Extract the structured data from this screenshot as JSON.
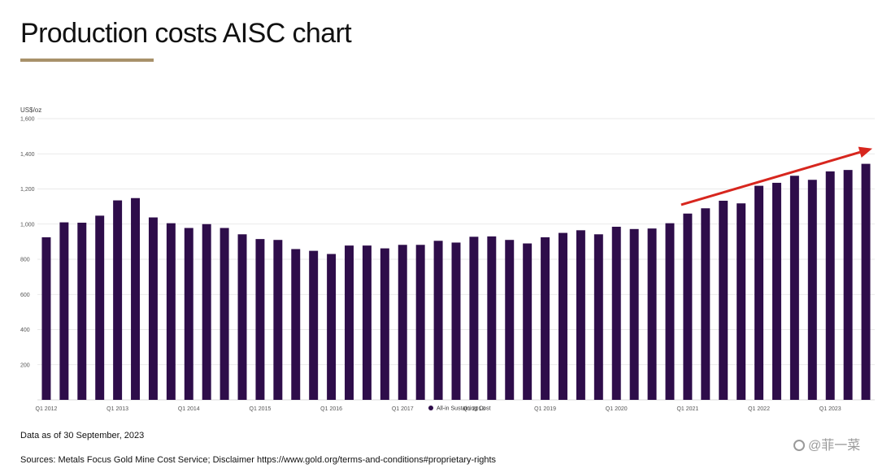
{
  "page": {
    "title": "Production costs AISC chart",
    "data_date_note": "Data as of 30 September, 2023",
    "sources_note": "Sources: Metals Focus Gold Mine Cost Service; Disclaimer https://www.gold.org/terms-and-conditions#proprietary-rights",
    "watermark": "@菲一菜",
    "watermark_icon": "zhihu-logo-icon",
    "colors": {
      "bar": "#2e0d4a",
      "accent_underline": "#a8916a",
      "arrow": "#d7261e",
      "grid": "#e2e2e2",
      "text": "#111111"
    }
  },
  "chart_data": {
    "type": "bar",
    "unit_label": "US$/oz",
    "ylim": [
      0,
      1600
    ],
    "y_ticks": [
      200,
      400,
      600,
      800,
      1000,
      1200,
      1400,
      1600
    ],
    "y_tick_labels": [
      "200",
      "400",
      "600",
      "800",
      "1,000",
      "1,200",
      "1,400",
      "1,600"
    ],
    "grid": true,
    "legend": {
      "position": "bottom-center",
      "entries": [
        "All-in Sustaining Cost"
      ]
    },
    "x_tick_labels": [
      {
        "index": 0,
        "label": "Q1 2012"
      },
      {
        "index": 4,
        "label": "Q1 2013"
      },
      {
        "index": 8,
        "label": "Q1 2014"
      },
      {
        "index": 12,
        "label": "Q1 2015"
      },
      {
        "index": 16,
        "label": "Q1 2016"
      },
      {
        "index": 20,
        "label": "Q1 2017"
      },
      {
        "index": 24,
        "label": "Q1 2018"
      },
      {
        "index": 28,
        "label": "Q1 2019"
      },
      {
        "index": 32,
        "label": "Q1 2020"
      },
      {
        "index": 36,
        "label": "Q1 2021"
      },
      {
        "index": 40,
        "label": "Q1 2022"
      },
      {
        "index": 44,
        "label": "Q1 2023"
      }
    ],
    "categories": [
      "Q1 2012",
      "Q2 2012",
      "Q3 2012",
      "Q4 2012",
      "Q1 2013",
      "Q2 2013",
      "Q3 2013",
      "Q4 2013",
      "Q1 2014",
      "Q2 2014",
      "Q3 2014",
      "Q4 2014",
      "Q1 2015",
      "Q2 2015",
      "Q3 2015",
      "Q4 2015",
      "Q1 2016",
      "Q2 2016",
      "Q3 2016",
      "Q4 2016",
      "Q1 2017",
      "Q2 2017",
      "Q3 2017",
      "Q4 2017",
      "Q1 2018",
      "Q2 2018",
      "Q3 2018",
      "Q4 2018",
      "Q1 2019",
      "Q2 2019",
      "Q3 2019",
      "Q4 2019",
      "Q1 2020",
      "Q2 2020",
      "Q3 2020",
      "Q4 2020",
      "Q1 2021",
      "Q2 2021",
      "Q3 2021",
      "Q4 2021",
      "Q1 2022",
      "Q2 2022",
      "Q3 2022",
      "Q4 2022",
      "Q1 2023",
      "Q2 2023",
      "Q3 2023"
    ],
    "series": [
      {
        "name": "All-in Sustaining Cost",
        "values": [
          925,
          1010,
          1008,
          1048,
          1135,
          1148,
          1038,
          1005,
          978,
          1000,
          978,
          942,
          915,
          910,
          858,
          848,
          830,
          878,
          878,
          862,
          882,
          882,
          905,
          895,
          928,
          930,
          910,
          890,
          925,
          950,
          965,
          942,
          985,
          972,
          975,
          1005,
          1060,
          1090,
          1133,
          1118,
          1218,
          1235,
          1275,
          1252,
          1300,
          1308,
          1343
        ]
      }
    ],
    "annotation": {
      "type": "trend-arrow",
      "from_index": 36,
      "from_value": 1110,
      "to_index": 46,
      "to_value": 1430
    }
  }
}
